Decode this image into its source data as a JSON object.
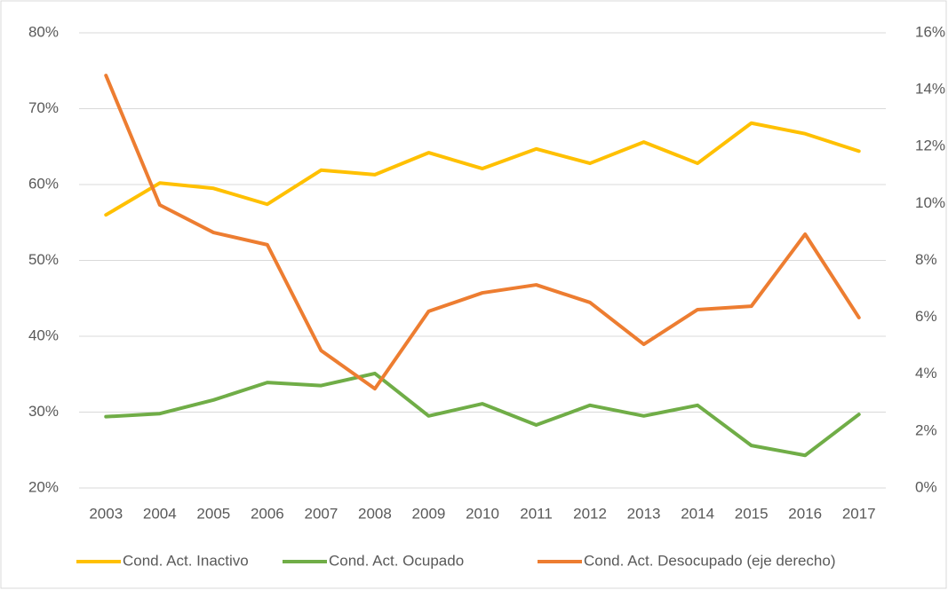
{
  "chart_data": {
    "type": "line",
    "categories": [
      "2003",
      "2004",
      "2005",
      "2006",
      "2007",
      "2008",
      "2009",
      "2010",
      "2011",
      "2012",
      "2013",
      "2014",
      "2015",
      "2016",
      "2017"
    ],
    "series": [
      {
        "name": "Cond. Act. Inactivo",
        "color": "#FFC000",
        "values": [
          56.0,
          60.2,
          59.5,
          57.4,
          61.9,
          61.3,
          64.2,
          62.1,
          64.7,
          62.8,
          65.6,
          62.8,
          68.1,
          66.7,
          64.4
        ]
      },
      {
        "name": "Cond. Act. Ocupado",
        "color": "#70AD47",
        "values": [
          29.4,
          29.8,
          31.6,
          33.9,
          33.5,
          35.1,
          29.5,
          31.1,
          28.3,
          30.9,
          29.5,
          30.9,
          25.6,
          24.3,
          29.7
        ]
      },
      {
        "name": "Cond. Act. Desocupado (eje derecho)",
        "color": "#ED7D31",
        "axis": "y2",
        "values": [
          14.5,
          9.95,
          8.98,
          8.55,
          4.83,
          3.49,
          6.21,
          6.86,
          7.14,
          6.52,
          5.05,
          6.27,
          6.39,
          8.92,
          5.99
        ]
      }
    ],
    "ylim": [
      20,
      80
    ],
    "yticks": [
      {
        "value": 20,
        "label": "20%"
      },
      {
        "value": 30,
        "label": "30%"
      },
      {
        "value": 40,
        "label": "40%"
      },
      {
        "value": 50,
        "label": "50%"
      },
      {
        "value": 60,
        "label": "60%"
      },
      {
        "value": 70,
        "label": "70%"
      },
      {
        "value": 80,
        "label": "80%"
      }
    ],
    "y2lim": [
      0,
      16
    ],
    "y2ticks": [
      {
        "value": 0,
        "label": "0%"
      },
      {
        "value": 2,
        "label": "2%"
      },
      {
        "value": 4,
        "label": "4%"
      },
      {
        "value": 6,
        "label": "6%"
      },
      {
        "value": 8,
        "label": "8%"
      },
      {
        "value": 10,
        "label": "10%"
      },
      {
        "value": 12,
        "label": "12%"
      },
      {
        "value": 14,
        "label": "14%"
      },
      {
        "value": 16,
        "label": "16%"
      }
    ],
    "grid": true,
    "legend": "bottom"
  }
}
